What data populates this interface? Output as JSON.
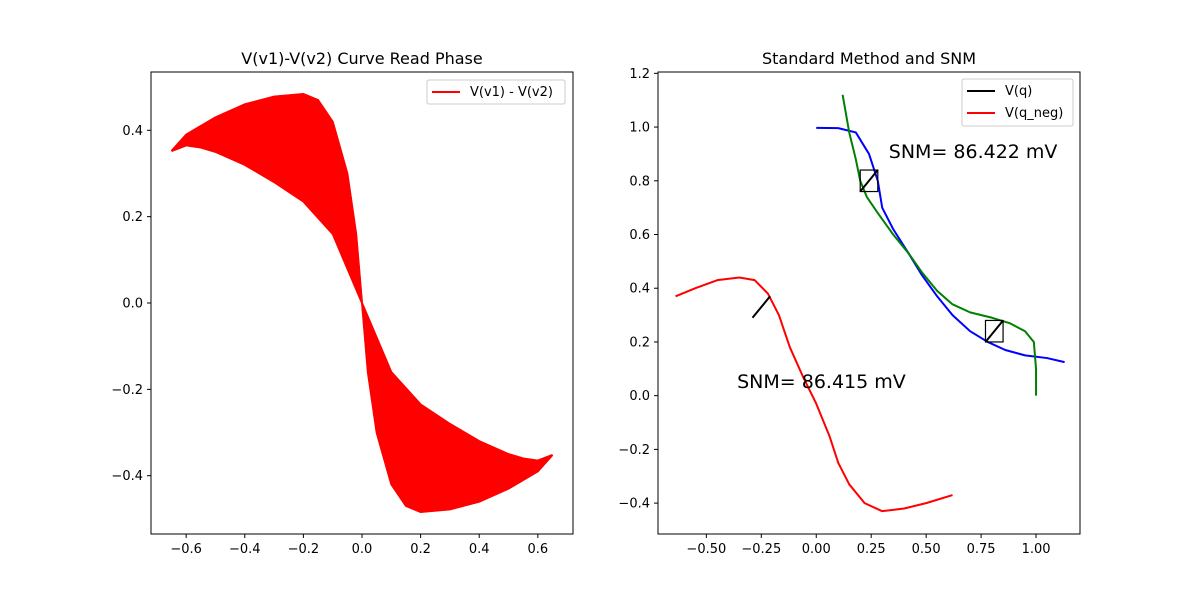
{
  "chart_data": [
    {
      "type": "line",
      "title": "V(v1)-V(v2) Curve Read Phase",
      "xlim": [
        -0.72,
        0.72
      ],
      "ylim": [
        -0.535,
        0.535
      ],
      "xticks": [
        -0.6,
        -0.4,
        -0.2,
        0.0,
        0.2,
        0.4,
        0.6
      ],
      "xtick_labels": [
        "−0.6",
        "−0.4",
        "−0.2",
        "0.0",
        "0.2",
        "0.4",
        "0.6"
      ],
      "yticks": [
        -0.4,
        -0.2,
        0.0,
        0.2,
        0.4
      ],
      "ytick_labels": [
        "−0.4",
        "−0.2",
        "0.0",
        "0.2",
        "0.4"
      ],
      "legend": {
        "position": "top-right",
        "entries": [
          {
            "label": "V(v1) - V(v2)",
            "color": "#ff0000"
          }
        ]
      },
      "band": {
        "name": "V(v1) - V(v2)",
        "color": "#ff0000",
        "outer": [
          [
            -0.65,
            0.352
          ],
          [
            -0.6,
            0.39
          ],
          [
            -0.5,
            0.43
          ],
          [
            -0.4,
            0.46
          ],
          [
            -0.3,
            0.478
          ],
          [
            -0.2,
            0.484
          ],
          [
            -0.15,
            0.47
          ],
          [
            -0.1,
            0.42
          ],
          [
            -0.05,
            0.3
          ],
          [
            -0.02,
            0.16
          ],
          [
            0.0,
            0.0
          ],
          [
            0.02,
            -0.16
          ],
          [
            0.05,
            -0.3
          ],
          [
            0.1,
            -0.42
          ],
          [
            0.15,
            -0.47
          ],
          [
            0.2,
            -0.484
          ],
          [
            0.3,
            -0.478
          ],
          [
            0.4,
            -0.46
          ],
          [
            0.5,
            -0.43
          ],
          [
            0.6,
            -0.39
          ],
          [
            0.65,
            -0.352
          ]
        ],
        "inner": [
          [
            -0.65,
            0.352
          ],
          [
            -0.6,
            0.365
          ],
          [
            -0.55,
            0.36
          ],
          [
            -0.5,
            0.35
          ],
          [
            -0.4,
            0.32
          ],
          [
            -0.3,
            0.28
          ],
          [
            -0.2,
            0.235
          ],
          [
            -0.1,
            0.16
          ],
          [
            0.0,
            0.0
          ],
          [
            0.1,
            -0.16
          ],
          [
            0.2,
            -0.235
          ],
          [
            0.3,
            -0.28
          ],
          [
            0.4,
            -0.32
          ],
          [
            0.5,
            -0.35
          ],
          [
            0.55,
            -0.36
          ],
          [
            0.6,
            -0.365
          ],
          [
            0.65,
            -0.352
          ]
        ]
      }
    },
    {
      "type": "line",
      "title": "Standard Method and SNM",
      "xlim": [
        -0.72,
        1.2
      ],
      "ylim": [
        -0.515,
        1.205
      ],
      "xticks": [
        -0.5,
        -0.25,
        0.0,
        0.25,
        0.5,
        0.75,
        1.0
      ],
      "xtick_labels": [
        "−0.50",
        "−0.25",
        "0.00",
        "0.25",
        "0.50",
        "0.75",
        "1.00"
      ],
      "yticks": [
        -0.4,
        -0.2,
        0.0,
        0.2,
        0.4,
        0.6,
        0.8,
        1.0,
        1.2
      ],
      "ytick_labels": [
        "−0.4",
        "−0.2",
        "0.0",
        "0.2",
        "0.4",
        "0.6",
        "0.8",
        "1.0",
        "1.2"
      ],
      "legend": {
        "position": "top-right",
        "entries": [
          {
            "label": "V(q)",
            "color": "#000000"
          },
          {
            "label": "V(q_neg)",
            "color": "#ff0000"
          }
        ]
      },
      "series": [
        {
          "color": "#0000ff",
          "points": [
            [
              0.0,
              0.997
            ],
            [
              0.1,
              0.996
            ],
            [
              0.18,
              0.98
            ],
            [
              0.24,
              0.9
            ],
            [
              0.28,
              0.8
            ],
            [
              0.3,
              0.7
            ],
            [
              0.35,
              0.62
            ],
            [
              0.42,
              0.53
            ],
            [
              0.48,
              0.45
            ],
            [
              0.55,
              0.37
            ],
            [
              0.62,
              0.3
            ],
            [
              0.7,
              0.24
            ],
            [
              0.78,
              0.2
            ],
            [
              0.86,
              0.17
            ],
            [
              0.95,
              0.15
            ],
            [
              1.05,
              0.14
            ],
            [
              1.13,
              0.125
            ]
          ]
        },
        {
          "color": "#008000",
          "points": [
            [
              0.12,
              1.12
            ],
            [
              0.15,
              0.98
            ],
            [
              0.18,
              0.88
            ],
            [
              0.2,
              0.8
            ],
            [
              0.23,
              0.74
            ],
            [
              0.28,
              0.68
            ],
            [
              0.35,
              0.6
            ],
            [
              0.42,
              0.53
            ],
            [
              0.48,
              0.46
            ],
            [
              0.55,
              0.39
            ],
            [
              0.62,
              0.34
            ],
            [
              0.7,
              0.31
            ],
            [
              0.8,
              0.29
            ],
            [
              0.88,
              0.27
            ],
            [
              0.95,
              0.24
            ],
            [
              0.99,
              0.2
            ],
            [
              1.0,
              0.1
            ],
            [
              1.0,
              0.0
            ]
          ]
        },
        {
          "color": "#ff0000",
          "points": [
            [
              -0.64,
              0.37
            ],
            [
              -0.55,
              0.4
            ],
            [
              -0.45,
              0.43
            ],
            [
              -0.35,
              0.44
            ],
            [
              -0.28,
              0.43
            ],
            [
              -0.22,
              0.38
            ],
            [
              -0.17,
              0.3
            ],
            [
              -0.12,
              0.18
            ],
            [
              -0.06,
              0.07
            ],
            [
              0.0,
              -0.03
            ],
            [
              0.06,
              -0.15
            ],
            [
              0.1,
              -0.25
            ],
            [
              0.15,
              -0.33
            ],
            [
              0.22,
              -0.4
            ],
            [
              0.3,
              -0.43
            ],
            [
              0.4,
              -0.42
            ],
            [
              0.5,
              -0.4
            ],
            [
              0.62,
              -0.37
            ]
          ]
        },
        {
          "color": "#000000",
          "points": [
            [
              -0.29,
              0.29
            ],
            [
              -0.21,
              0.37
            ]
          ]
        },
        {
          "color": "#000000",
          "points": [
            [
              0.2,
              0.76
            ],
            [
              0.28,
              0.84
            ]
          ]
        },
        {
          "color": "#000000",
          "points": [
            [
              0.77,
              0.2
            ],
            [
              0.85,
              0.28
            ]
          ]
        }
      ],
      "squares": [
        {
          "x": 0.2,
          "y": 0.76,
          "w": 0.08,
          "h": 0.08
        },
        {
          "x": 0.77,
          "y": 0.2,
          "w": 0.08,
          "h": 0.08
        }
      ],
      "annotations": [
        {
          "text": "SNM= 86.422 mV",
          "x": 0.33,
          "y": 0.91
        },
        {
          "text": "SNM= 86.415 mV",
          "x": -0.36,
          "y": 0.055
        }
      ]
    }
  ]
}
